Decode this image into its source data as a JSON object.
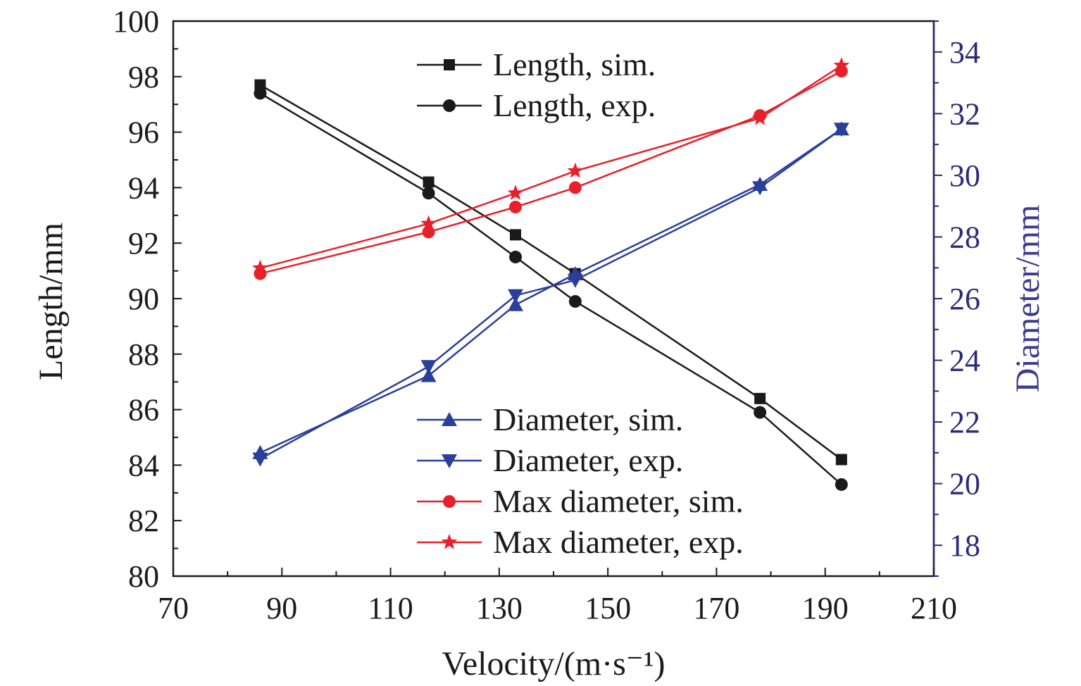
{
  "chart_data": {
    "type": "line",
    "title": "",
    "xlabel": "Velocity/(m·s⁻¹)",
    "ylabel_left": "Length/mm",
    "ylabel_right": "Diameter/mm",
    "xlim": [
      70,
      210
    ],
    "xticks": [
      70,
      90,
      110,
      130,
      150,
      170,
      190,
      210
    ],
    "ylim_left": [
      80,
      100
    ],
    "yticks_left": [
      80,
      82,
      84,
      86,
      88,
      90,
      92,
      94,
      96,
      98,
      100
    ],
    "ylim_right": [
      17,
      35
    ],
    "yticks_right": [
      18,
      20,
      22,
      24,
      26,
      28,
      30,
      32,
      34
    ],
    "grid": false,
    "x": [
      86,
      117,
      133,
      144,
      178,
      193
    ],
    "series": [
      {
        "name": "Length, sim.",
        "axis": "left",
        "color": "#1a1a1a",
        "marker": "square",
        "values": [
          97.7,
          94.2,
          92.3,
          90.9,
          86.4,
          84.2
        ]
      },
      {
        "name": "Length, exp.",
        "axis": "left",
        "color": "#1a1a1a",
        "marker": "circle",
        "values": [
          97.4,
          93.8,
          91.5,
          89.9,
          85.9,
          83.3
        ]
      },
      {
        "name": "Diameter, sim.",
        "axis": "right",
        "color": "#2a3f9a",
        "marker": "triangle-up",
        "values": [
          21.0,
          23.5,
          25.8,
          26.8,
          29.7,
          31.5
        ]
      },
      {
        "name": "Diameter, exp.",
        "axis": "right",
        "color": "#2a3f9a",
        "marker": "triangle-down",
        "values": [
          20.8,
          23.8,
          26.1,
          26.6,
          29.6,
          31.5
        ]
      },
      {
        "name": "Max diameter, sim.",
        "axis": "left",
        "color": "#e8202a",
        "marker": "circle",
        "values": [
          90.9,
          92.4,
          93.3,
          94.0,
          96.6,
          98.2
        ]
      },
      {
        "name": "Max diameter, exp.",
        "axis": "left",
        "color": "#e8202a",
        "marker": "star",
        "values": [
          91.1,
          92.7,
          93.8,
          94.6,
          96.5,
          98.4
        ]
      }
    ],
    "legend": [
      {
        "placement": "top-center",
        "entries": [
          "Length, sim.",
          "Length, exp."
        ]
      },
      {
        "placement": "bottom-center",
        "entries": [
          "Diameter, sim.",
          "Diameter, exp.",
          "Max diameter, sim.",
          "Max diameter, exp."
        ]
      }
    ]
  }
}
